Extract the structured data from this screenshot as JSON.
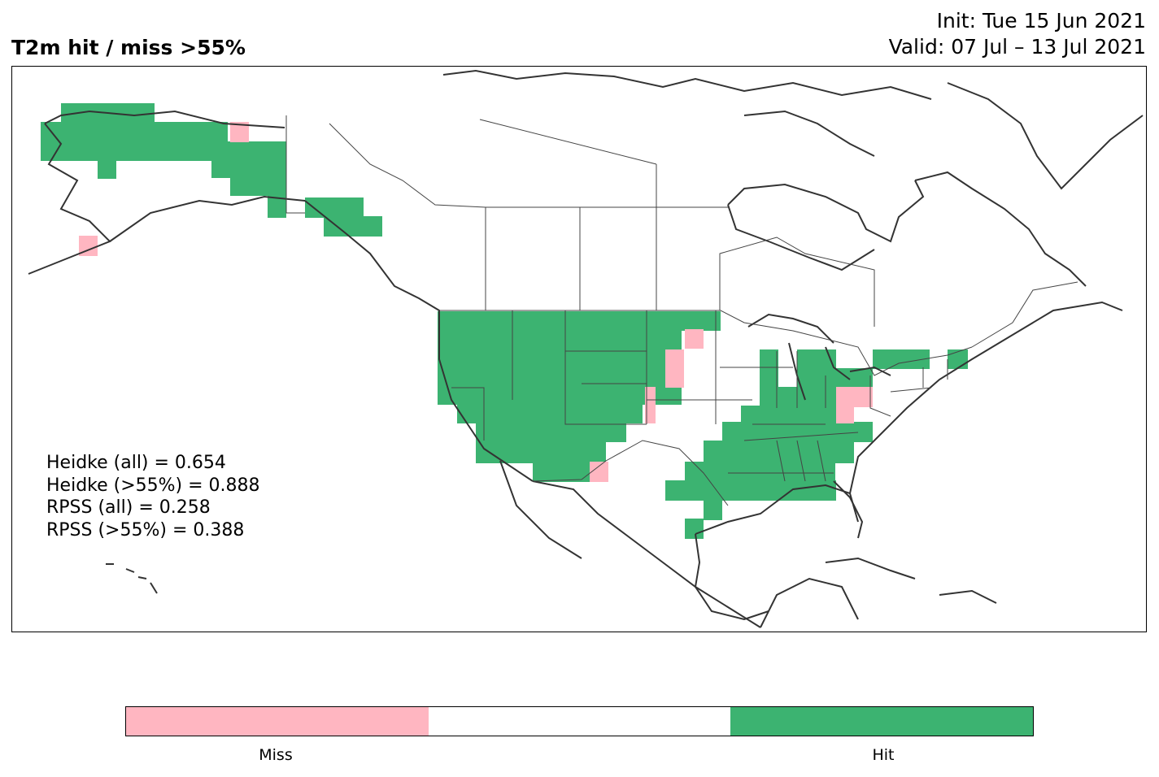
{
  "title": {
    "main": "T2m hit / miss  >55%",
    "init": "Init: Tue 15 Jun 2021",
    "valid": "Valid: 07 Jul – 13 Jul 2021"
  },
  "scores": [
    "Heidke (all) = 0.654",
    "Heidke (>55%) = 0.888",
    "RPSS (all) = 0.258",
    "RPSS (>55%) = 0.388"
  ],
  "colorbar": {
    "segments": [
      {
        "color": "#ffb6c1",
        "label": "Miss"
      },
      {
        "color": "#ffffff",
        "label": ""
      },
      {
        "color": "#3cb371",
        "label": "Hit"
      }
    ],
    "labels": [
      "Miss",
      "Hit"
    ]
  },
  "colors": {
    "hit": "#3cb371",
    "miss": "#ffb6c1",
    "coastline": "#333333",
    "border": "#444444"
  }
}
